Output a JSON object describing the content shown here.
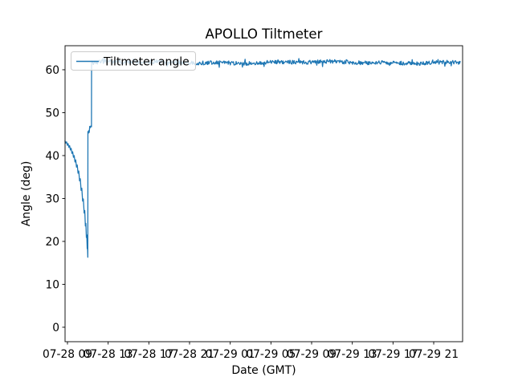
{
  "chart_data": {
    "type": "line",
    "title": "APOLLO Tiltmeter",
    "xlabel": "Date (GMT)",
    "ylabel": "Angle (deg)",
    "x_unit": "hours since 07-28 00:00 GMT",
    "legend": {
      "label": "Tiltmeter angle",
      "location": "upper left"
    },
    "axes": {
      "grid": false,
      "ylim": [
        -3.37,
        65.6
      ],
      "xlim_hours_gmt": [
        8.763,
        47.84
      ],
      "y_ticks": [
        {
          "value": 0,
          "label": "0"
        },
        {
          "value": 10,
          "label": "10"
        },
        {
          "value": 20,
          "label": "20"
        },
        {
          "value": 30,
          "label": "30"
        },
        {
          "value": 40,
          "label": "40"
        },
        {
          "value": 50,
          "label": "50"
        },
        {
          "value": 60,
          "label": "60"
        }
      ],
      "x_ticks": [
        {
          "hours": 9,
          "label": "07-28 09"
        },
        {
          "hours": 13,
          "label": "07-28 13"
        },
        {
          "hours": 17,
          "label": "07-28 17"
        },
        {
          "hours": 21,
          "label": "07-28 21"
        },
        {
          "hours": 25,
          "label": "07-29 01"
        },
        {
          "hours": 29,
          "label": "07-29 05"
        },
        {
          "hours": 33,
          "label": "07-29 09"
        },
        {
          "hours": 37,
          "label": "07-29 13"
        },
        {
          "hours": 41,
          "label": "07-29 17"
        },
        {
          "hours": 45,
          "label": "07-29 21"
        }
      ]
    },
    "series": [
      {
        "name": "Tiltmeter angle",
        "color": "#1f77b4",
        "points_decline": [
          [
            8.76,
            43.4
          ],
          [
            8.83,
            42.9
          ],
          [
            8.91,
            43.2
          ],
          [
            8.99,
            42.4
          ],
          [
            9.06,
            42.8
          ],
          [
            9.14,
            41.9
          ],
          [
            9.21,
            42.3
          ],
          [
            9.29,
            41.3
          ],
          [
            9.36,
            41.7
          ],
          [
            9.44,
            40.5
          ],
          [
            9.51,
            40.9
          ],
          [
            9.59,
            39.6
          ],
          [
            9.66,
            40.0
          ],
          [
            9.74,
            38.5
          ],
          [
            9.81,
            39.0
          ],
          [
            9.89,
            37.3
          ],
          [
            9.96,
            37.8
          ],
          [
            10.04,
            35.9
          ],
          [
            10.11,
            36.4
          ],
          [
            10.19,
            34.1
          ],
          [
            10.26,
            34.6
          ],
          [
            10.34,
            31.9
          ],
          [
            10.41,
            32.4
          ],
          [
            10.49,
            29.4
          ],
          [
            10.56,
            29.9
          ],
          [
            10.64,
            26.6
          ],
          [
            10.7,
            27.2
          ],
          [
            10.76,
            23.6
          ],
          [
            10.81,
            24.2
          ],
          [
            10.86,
            20.9
          ],
          [
            10.9,
            21.5
          ],
          [
            10.94,
            18.3
          ],
          [
            10.97,
            18.9
          ],
          [
            11.0,
            16.3
          ]
        ],
        "points_transition": [
          [
            11.01,
            45.6
          ],
          [
            11.05,
            45.2
          ],
          [
            11.09,
            45.8
          ],
          [
            11.14,
            45.4
          ],
          [
            11.19,
            46.8
          ],
          [
            11.24,
            46.5
          ],
          [
            11.3,
            46.9
          ],
          [
            11.36,
            46.7
          ],
          [
            11.37,
            61.2
          ]
        ],
        "flat_segment": {
          "t_start": 11.38,
          "t_end": 47.6,
          "mean": 61.7,
          "base_amplitude": 0.45,
          "spike_amplitude": 0.9,
          "spike_probability": 0.06,
          "num_points": 700,
          "seed": 20210728
        }
      }
    ]
  },
  "colors": {
    "line": "#1f77b4",
    "axis": "#000000",
    "background": "#ffffff",
    "legend_border": "#cccccc",
    "legend_fill": "#ffffff"
  }
}
